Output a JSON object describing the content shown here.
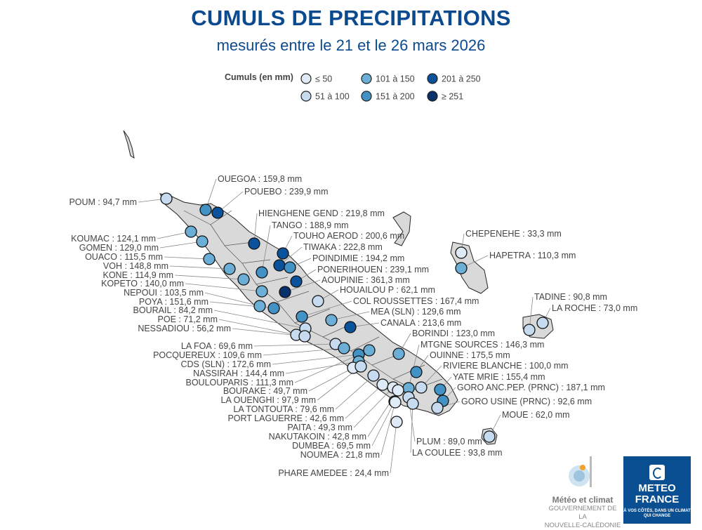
{
  "title": "CUMULS DE PRECIPITATIONS",
  "subtitle": "mesurés entre le 21 et le 26 mars 2026",
  "legend": {
    "title": "Cumuls (en mm)",
    "classes": [
      {
        "label": "≤ 50",
        "color": "#deebf7"
      },
      {
        "label": "51 à 100",
        "color": "#c6dbef"
      },
      {
        "label": "101 à 150",
        "color": "#6baed6"
      },
      {
        "label": "151 à 200",
        "color": "#4292c6"
      },
      {
        "label": "201 à 250",
        "color": "#0a529c"
      },
      {
        "label": "≥ 251",
        "color": "#08306b"
      }
    ]
  },
  "stations": [
    {
      "name": "POUM",
      "value": "94,7 mm"
    },
    {
      "name": "OUEGOA",
      "value": "159,8 mm"
    },
    {
      "name": "POUEBO",
      "value": "239,9 mm"
    },
    {
      "name": "KOUMAC",
      "value": "124,1 mm"
    },
    {
      "name": "GOMEN",
      "value": "129,0 mm"
    },
    {
      "name": "OUACO",
      "value": "115,5 mm"
    },
    {
      "name": "VOH",
      "value": "148,8 mm"
    },
    {
      "name": "KONE",
      "value": "114,9 mm"
    },
    {
      "name": "KOPETO",
      "value": "140,0 mm"
    },
    {
      "name": "NEPOUI",
      "value": "103,5 mm"
    },
    {
      "name": "POYA",
      "value": "151,6 mm"
    },
    {
      "name": "BOURAIL",
      "value": "84,2 mm"
    },
    {
      "name": "POE",
      "value": "71,2 mm"
    },
    {
      "name": "NESSADIOU",
      "value": "56,2 mm"
    },
    {
      "name": "HIENGHENE GEND",
      "value": "219,8 mm"
    },
    {
      "name": "TANGO",
      "value": "188,9 mm"
    },
    {
      "name": "TOUHO AEROD",
      "value": "200,6 mm"
    },
    {
      "name": "TIWAKA",
      "value": "222,8 mm"
    },
    {
      "name": "POINDIMIE",
      "value": "194,2 mm"
    },
    {
      "name": "PONERIHOUEN",
      "value": "239,1 mm"
    },
    {
      "name": "AOUPINIE",
      "value": "361,3 mm"
    },
    {
      "name": "HOUAILOU P",
      "value": "62,1 mm"
    },
    {
      "name": "COL ROUSSETTES",
      "value": "167,4 mm"
    },
    {
      "name": "MEA (SLN)",
      "value": "129,6 mm"
    },
    {
      "name": "CANALA",
      "value": "213,6 mm"
    },
    {
      "name": "BORINDI",
      "value": "123,0 mm"
    },
    {
      "name": "MTGNE SOURCES",
      "value": "146,3 mm"
    },
    {
      "name": "OUINNE",
      "value": "175,5 mm"
    },
    {
      "name": "RIVIERE BLANCHE",
      "value": "100,0 mm"
    },
    {
      "name": "YATE MRIE",
      "value": "155,4 mm"
    },
    {
      "name": "GORO ANC.PEP. (PRNC)",
      "value": "187,1 mm"
    },
    {
      "name": "GORO USINE (PRNC)",
      "value": "92,6 mm"
    },
    {
      "name": "LA FOA",
      "value": "69,6 mm"
    },
    {
      "name": "POCQUEREUX",
      "value": "109,6 mm"
    },
    {
      "name": "CDS (SLN)",
      "value": "172,6 mm"
    },
    {
      "name": "NASSIRAH",
      "value": "144,4 mm"
    },
    {
      "name": "BOULOUPARIS",
      "value": "111,3 mm"
    },
    {
      "name": "BOURAKE",
      "value": "49,7 mm"
    },
    {
      "name": "LA OUENGHI",
      "value": "97,9 mm"
    },
    {
      "name": "LA TONTOUTA",
      "value": "79,6 mm"
    },
    {
      "name": "PORT LAGUERRE",
      "value": "42,6 mm"
    },
    {
      "name": "PAITA",
      "value": "49,3 mm"
    },
    {
      "name": "NAKUTAKOIN",
      "value": "42,8 mm"
    },
    {
      "name": "DUMBEA",
      "value": "69,5 mm"
    },
    {
      "name": "NOUMEA",
      "value": "21,8 mm"
    },
    {
      "name": "PHARE AMEDEE",
      "value": "24,4 mm"
    },
    {
      "name": "PLUM",
      "value": "89,0 mm"
    },
    {
      "name": "LA COULEE",
      "value": "93,8 mm"
    },
    {
      "name": "MOUE",
      "value": "62,0 mm"
    },
    {
      "name": "CHEPENEHE",
      "value": "33,3 mm"
    },
    {
      "name": "HAPETRA",
      "value": "110,3 mm"
    },
    {
      "name": "TADINE",
      "value": "90,8 mm"
    },
    {
      "name": "LA ROCHE",
      "value": "73,0 mm"
    }
  ],
  "logos": {
    "meteo_climat": {
      "name": "Météo et climat",
      "sub1": "GOUVERNEMENT DE LA",
      "sub2": "NOUVELLE-CALÉDONIE"
    },
    "meteo_france": {
      "line1": "METEO",
      "line2": "FRANCE",
      "tagline": "À VOS CÔTÉS, DANS UN CLIMAT QUI CHANGE"
    }
  }
}
